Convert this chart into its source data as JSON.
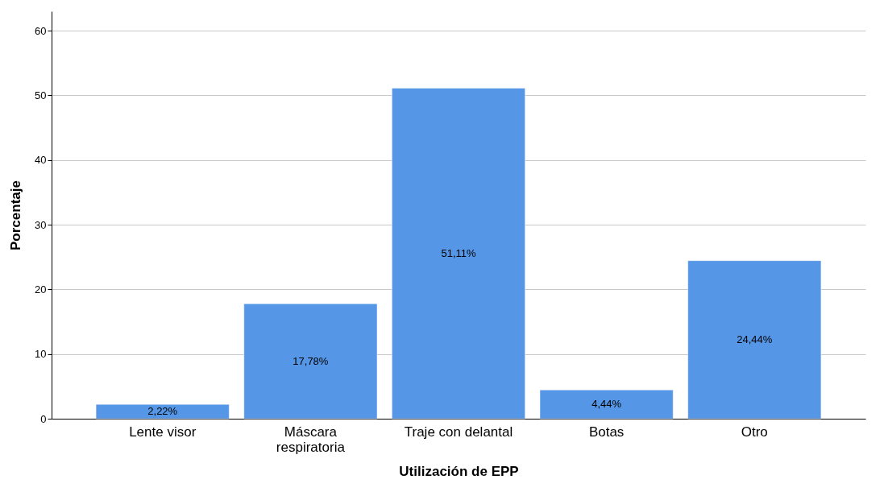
{
  "chart_data": {
    "type": "bar",
    "xlabel": "Utilización de EPP",
    "ylabel": "Porcentaje",
    "categories": [
      "Lente visor",
      "Máscara respiratoria",
      "Traje con delantal",
      "Botas",
      "Otro"
    ],
    "values": [
      2.22,
      17.78,
      51.11,
      4.44,
      24.44
    ],
    "value_labels": [
      "2,22%",
      "17,78%",
      "51,11%",
      "4,44%",
      "24,44%"
    ],
    "color": "#5596e6",
    "ylim": [
      0,
      63
    ],
    "yticks": [
      0,
      10,
      20,
      30,
      40,
      50,
      60
    ],
    "grid": "y"
  }
}
